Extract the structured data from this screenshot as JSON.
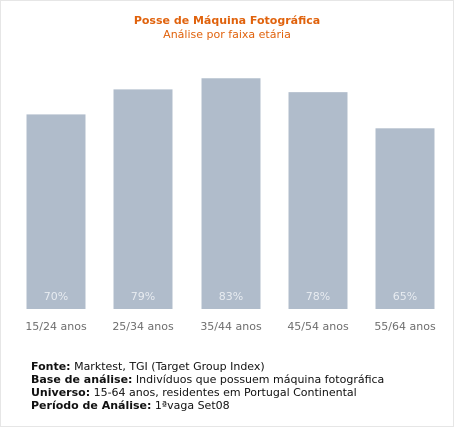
{
  "chart_data": {
    "type": "bar",
    "title": "Posse de Máquina Fotográfica",
    "subtitle": "Análise por faixa etária",
    "categories": [
      "15/24 anos",
      "25/34 anos",
      "35/44 anos",
      "45/54 anos",
      "55/64 anos"
    ],
    "values": [
      70,
      79,
      83,
      78,
      65
    ],
    "value_labels": [
      "70%",
      "79%",
      "83%",
      "78%",
      "65%"
    ],
    "bar_color": "#b0bccb",
    "title_color": "#e0620c"
  },
  "notes": [
    {
      "key": "Fonte:",
      "text": " Marktest, TGI (Target Group Index)"
    },
    {
      "key": "Base de análise:",
      "text": " Indivíduos que possuem máquina fotográfica"
    },
    {
      "key": "Universo:",
      "text": " 15-64 anos, residentes em Portugal Continental"
    },
    {
      "key": "Período de Análise:",
      "text": " 1ªvaga Set08"
    }
  ]
}
